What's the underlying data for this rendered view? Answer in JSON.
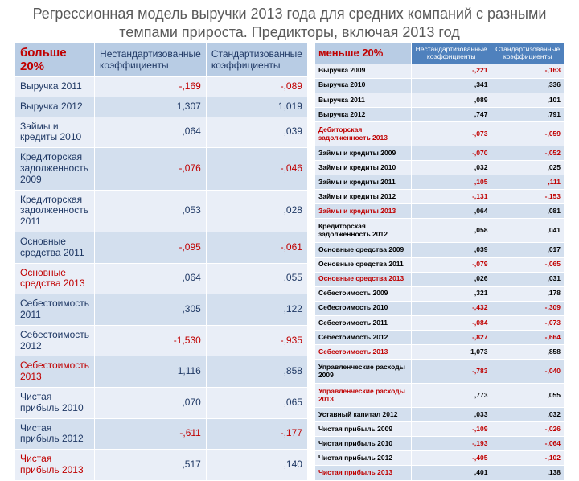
{
  "title": "Регрессионная модель выручки 2013 года для средних компаний с разными темпами прироста. Предикторы, включая 2013 год",
  "left": {
    "corner": "больше 20%",
    "headers": [
      "Нестандартизованные коэффициенты",
      "Стандартизованные коэффициенты"
    ],
    "rows": [
      {
        "label": "Выручка 2011",
        "v1": "-,169",
        "v2": "-,089",
        "neg": true
      },
      {
        "label": "Выручка 2012",
        "v1": "1,307",
        "v2": "1,019"
      },
      {
        "label": "Займы и кредиты 2010",
        "v1": ",064",
        "v2": ",039"
      },
      {
        "label": "Кредиторская задолженность 2009",
        "v1": "-,076",
        "v2": "-,046",
        "neg": true
      },
      {
        "label": "Кредиторская задолженность 2011",
        "v1": ",053",
        "v2": ",028"
      },
      {
        "label": "Основные средства 2011",
        "v1": "-,095",
        "v2": "-,061",
        "neg": true
      },
      {
        "label": "Основные средства 2013",
        "v1": ",064",
        "v2": ",055",
        "hl": true
      },
      {
        "label": "Себестоимость 2011",
        "v1": ",305",
        "v2": ",122"
      },
      {
        "label": "Себестоимость 2012",
        "v1": "-1,530",
        "v2": "-,935",
        "neg": true
      },
      {
        "label": "Себестоимость 2013",
        "v1": "1,116",
        "v2": ",858",
        "hl": true
      },
      {
        "label": "Чистая прибыль 2010",
        "v1": ",070",
        "v2": ",065"
      },
      {
        "label": "Чистая прибыль 2012",
        "v1": "-,611",
        "v2": "-,177",
        "neg": true
      },
      {
        "label": "Чистая прибыль 2013",
        "v1": ",517",
        "v2": ",140",
        "hl": true
      }
    ]
  },
  "right": {
    "corner": "меньше 20%",
    "headers": [
      "Нестандартизованные коэффициенты",
      "Стандартизованные коэффициенты"
    ],
    "rows": [
      {
        "label": "Выручка 2009",
        "v1": "-,221",
        "v2": "-,163",
        "neg": true
      },
      {
        "label": "Выручка 2010",
        "v1": ",341",
        "v2": ",336"
      },
      {
        "label": "Выручка 2011",
        "v1": ",089",
        "v2": ",101"
      },
      {
        "label": "Выручка 2012",
        "v1": ",747",
        "v2": ",791"
      },
      {
        "label": "Дебиторская задолженность 2013",
        "v1": "-,073",
        "v2": "-,059",
        "hl": true,
        "neg": true
      },
      {
        "label": "Займы и кредиты 2009",
        "v1": "-,070",
        "v2": "-,052",
        "neg": true
      },
      {
        "label": "Займы и кредиты 2010",
        "v1": ",032",
        "v2": ",025"
      },
      {
        "label": "Займы и кредиты 2011",
        "v1": ",105",
        "v2": ",111",
        "neg2": true
      },
      {
        "label": "Займы и кредиты 2012",
        "v1": "-,131",
        "v2": "-,153",
        "neg": true
      },
      {
        "label": "Займы и кредиты 2013",
        "v1": ",064",
        "v2": ",081",
        "hl": true
      },
      {
        "label": "Кредиторская задолженность 2012",
        "v1": ",058",
        "v2": ",041"
      },
      {
        "label": "Основные средства 2009",
        "v1": ",039",
        "v2": ",017"
      },
      {
        "label": "Основные средства 2011",
        "v1": "-,079",
        "v2": "-,065",
        "neg": true
      },
      {
        "label": "Основные средства 2013",
        "v1": ",026",
        "v2": ",031",
        "hl": true
      },
      {
        "label": "Себестоимость 2009",
        "v1": ",321",
        "v2": ",178"
      },
      {
        "label": "Себестоимость 2010",
        "v1": "-,432",
        "v2": "-,309",
        "neg": true
      },
      {
        "label": "Себестоимость 2011",
        "v1": "-,084",
        "v2": "-,073",
        "neg": true
      },
      {
        "label": "Себестоимость 2012",
        "v1": "-,827",
        "v2": "-,664",
        "neg": true
      },
      {
        "label": "Себестоимость 2013",
        "v1": "1,073",
        "v2": ",858",
        "hl": true
      },
      {
        "label": "Управленческие расходы 2009",
        "v1": "-,783",
        "v2": "-,040",
        "neg": true
      },
      {
        "label": "Управленческие расходы 2013",
        "v1": ",773",
        "v2": ",055",
        "hl": true
      },
      {
        "label": "Уставный капитал 2012",
        "v1": ",033",
        "v2": ",032"
      },
      {
        "label": "Чистая прибыль 2009",
        "v1": "-,109",
        "v2": "-,026",
        "neg": true
      },
      {
        "label": "Чистая прибыль 2010",
        "v1": "-,193",
        "v2": "-,064",
        "neg": true
      },
      {
        "label": "Чистая прибыль 2012",
        "v1": "-,405",
        "v2": "-,102",
        "neg": true
      },
      {
        "label": "Чистая прибыль 2013",
        "v1": ",401",
        "v2": ",138",
        "hl": true
      }
    ]
  }
}
